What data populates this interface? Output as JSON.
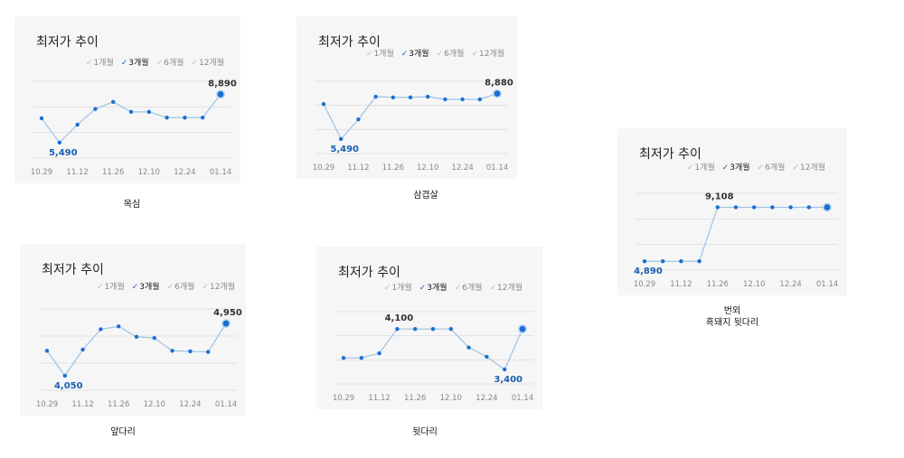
{
  "chart_data": [
    {
      "type": "line",
      "title": "최저가 추이",
      "tabs": [
        {
          "label": "1개월",
          "active": false
        },
        {
          "label": "3개월",
          "active": true
        },
        {
          "label": "6개월",
          "active": false
        },
        {
          "label": "12개월",
          "active": false
        }
      ],
      "x_ticks": [
        "10.29",
        "11.12",
        "11.26",
        "12.10",
        "12.24",
        "01.14"
      ],
      "values": [
        7200,
        5490,
        6750,
        7850,
        8350,
        7650,
        7650,
        7250,
        7250,
        7250,
        8890
      ],
      "min_label": "5,490",
      "max_label": "8,890",
      "ylim": [
        4400,
        9800
      ],
      "caption": [
        "목심"
      ]
    },
    {
      "type": "line",
      "title": "최저가 추이",
      "tabs": [
        {
          "label": "1개월",
          "active": false
        },
        {
          "label": "3개월",
          "active": true
        },
        {
          "label": "6개월",
          "active": false
        },
        {
          "label": "12개월",
          "active": false
        }
      ],
      "x_ticks": [
        "10.29",
        "11.12",
        "11.26",
        "12.10",
        "12.24",
        "01.14"
      ],
      "values": [
        8100,
        5490,
        6950,
        8650,
        8600,
        8600,
        8650,
        8450,
        8450,
        8450,
        8880
      ],
      "min_label": "5,490",
      "max_label": "8,880",
      "ylim": [
        4400,
        9800
      ],
      "caption": [
        "삼겹살"
      ]
    },
    {
      "type": "line",
      "title": "최저가 추이",
      "tabs": [
        {
          "label": "1개월",
          "active": false
        },
        {
          "label": "3개월",
          "active": true
        },
        {
          "label": "6개월",
          "active": false
        },
        {
          "label": "12개월",
          "active": false
        }
      ],
      "x_ticks": [
        "10.29",
        "11.12",
        "11.26",
        "12.10",
        "12.24",
        "01.14"
      ],
      "values": [
        4890,
        4890,
        4890,
        4890,
        9108,
        9108,
        9108,
        9108,
        9108,
        9108,
        9108
      ],
      "min_label": "4,890",
      "max_label": "9,108",
      "ylim": [
        4200,
        10200
      ],
      "caption": [
        "번외",
        "흑돼지 뒷다리"
      ]
    },
    {
      "type": "line",
      "title": "최저가 추이",
      "tabs": [
        {
          "label": "1개월",
          "active": false
        },
        {
          "label": "3개월",
          "active": true
        },
        {
          "label": "6개월",
          "active": false
        },
        {
          "label": "12개월",
          "active": false
        }
      ],
      "x_ticks": [
        "10.29",
        "11.12",
        "11.26",
        "12.10",
        "12.24",
        "01.14"
      ],
      "values": [
        4480,
        4050,
        4500,
        4850,
        4900,
        4720,
        4700,
        4480,
        4470,
        4460,
        4950
      ],
      "min_label": "4,050",
      "max_label": "4,950",
      "ylim": [
        3800,
        5200
      ],
      "caption": [
        "앞다리"
      ]
    },
    {
      "type": "line",
      "title": "최저가 추이",
      "tabs": [
        {
          "label": "1개월",
          "active": false
        },
        {
          "label": "3개월",
          "active": true
        },
        {
          "label": "6개월",
          "active": false
        },
        {
          "label": "12개월",
          "active": false
        }
      ],
      "x_ticks": [
        "10.29",
        "11.12",
        "11.26",
        "12.10",
        "12.24",
        "01.14"
      ],
      "values": [
        3600,
        3600,
        3680,
        4100,
        4100,
        4100,
        4100,
        3780,
        3620,
        3400,
        4100
      ],
      "min_label": "3,400",
      "max_label": "4,100",
      "ylim": [
        3150,
        4400
      ],
      "caption": [
        "뒷다리"
      ]
    }
  ],
  "colors": {
    "line": "#9cc3e6",
    "point": "#1a6fd1",
    "min_label": "#1a5fb4",
    "max_label": "#333333",
    "grid": "#e2e2e2",
    "panel_bg": "#f6f6f6"
  }
}
